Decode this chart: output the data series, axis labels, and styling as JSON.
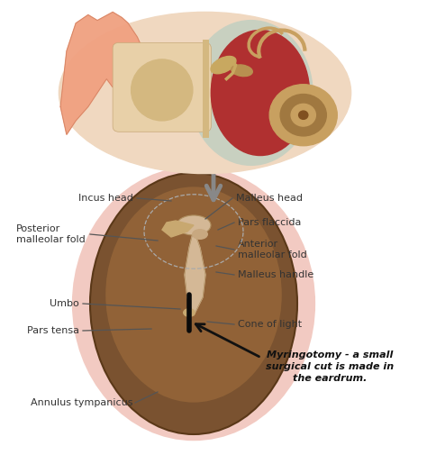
{
  "bg_color": "#ffffff",
  "labels": {
    "incus_head": "Incus head",
    "malleus_head": "Malleus head",
    "posterior_fold": "Posterior\nmalleolar fold",
    "pars_flaccida": "Pars flaccida",
    "anterior_fold": "Anterior\nmalleolar fold",
    "malleus_handle": "Malleus handle",
    "umbo": "Umbo",
    "pars_tensa": "Pars tensa",
    "cone_of_light": "Cone of light",
    "annulus": "Annulus tympanicus",
    "myringotomy": "Myringotomy - a small\nsurgical cut is made in\nthe eardrum."
  },
  "colors": {
    "eardrum_glow": "#e8a090",
    "eardrum_brown": "#7a5230",
    "eardrum_mid": "#9b6a3a",
    "malleus_bone": "#d4b896",
    "dashed_circle": "#aaaaaa",
    "arrow_gray": "#888888",
    "line_color": "#555555",
    "text_color": "#333333",
    "black": "#111111"
  }
}
